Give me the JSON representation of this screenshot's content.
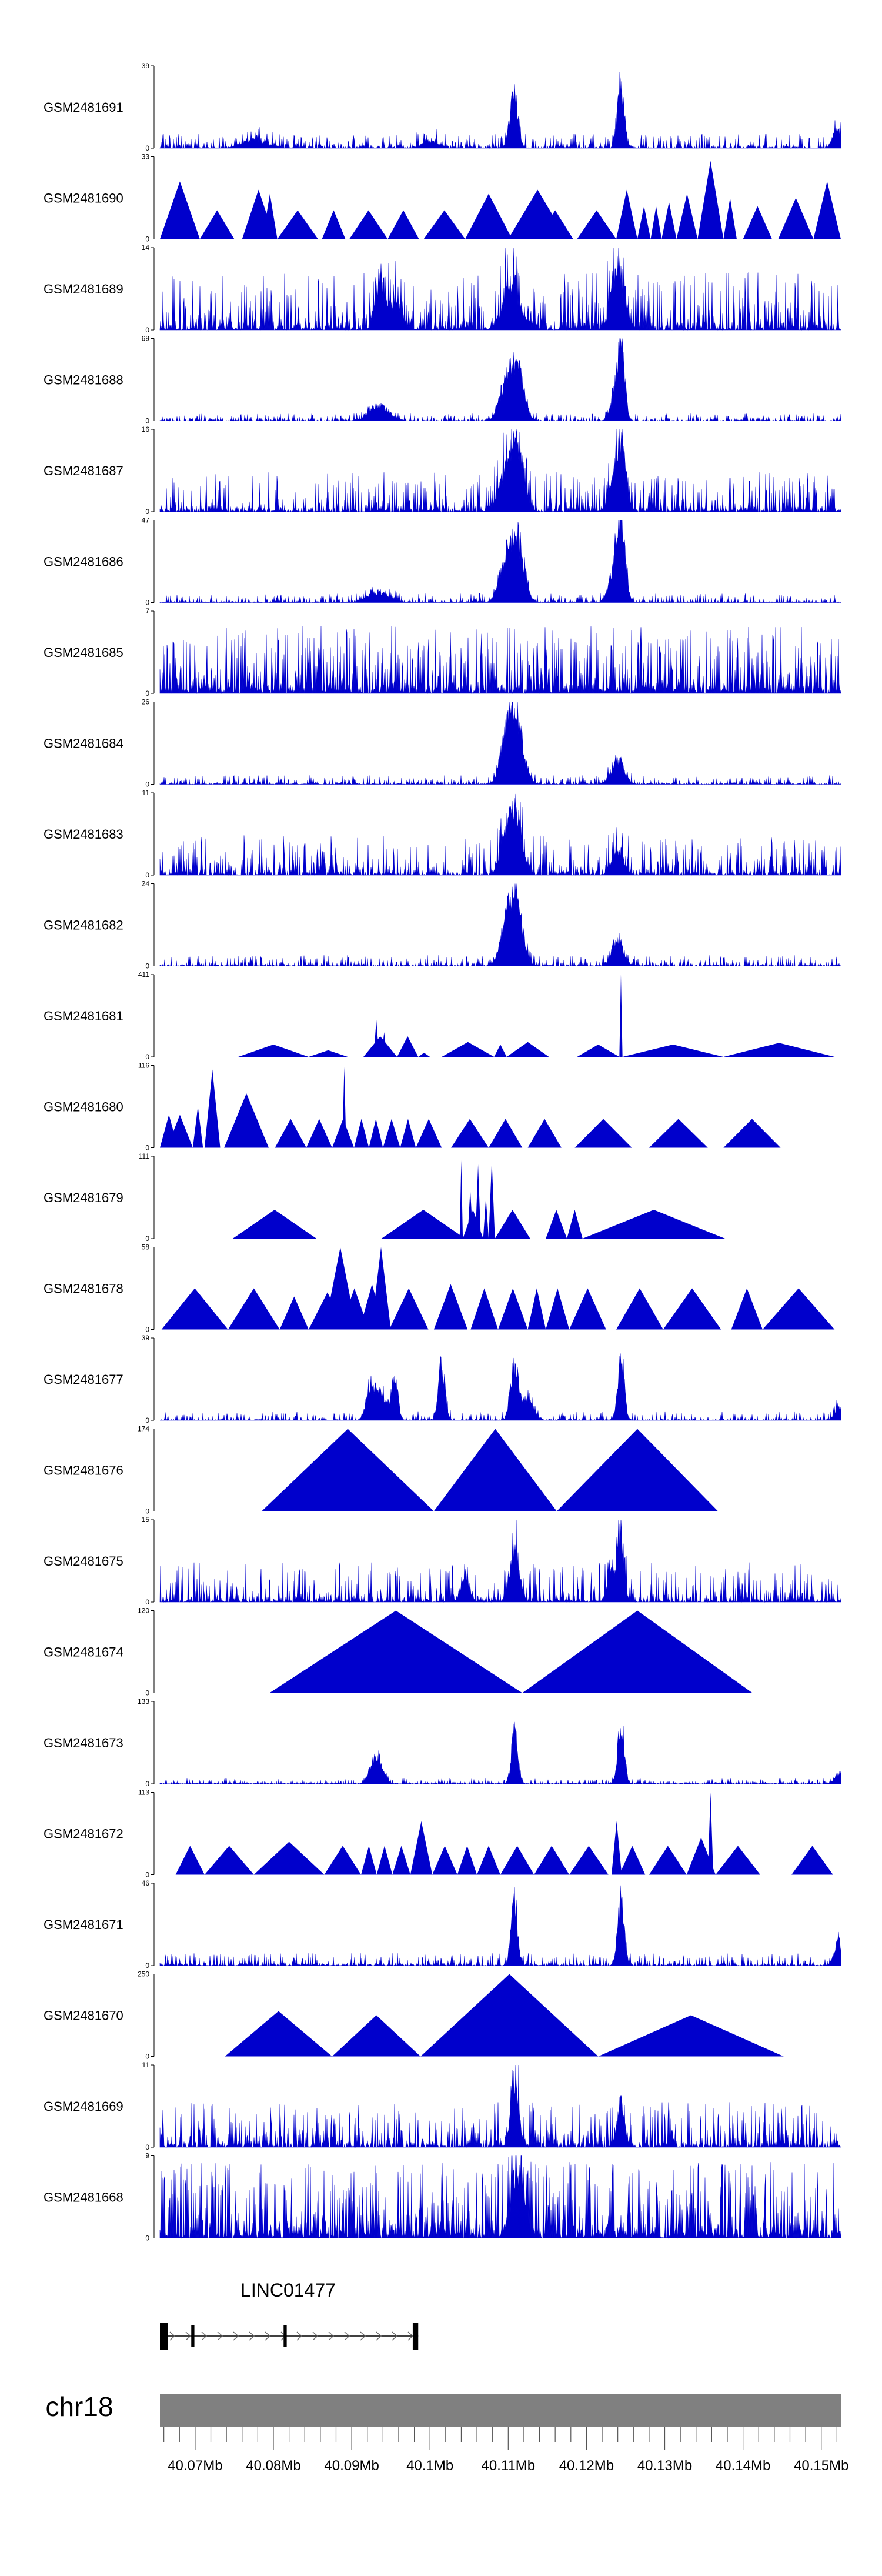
{
  "colors": {
    "signal": "#0000cc",
    "axis": "#000000",
    "chromosome_bar": "#808080",
    "gene": "#000000"
  },
  "chart_data": {
    "type": "area",
    "title": "",
    "region": {
      "chromosome": "chr18",
      "start_mb": 40.0655,
      "end_mb": 40.1525
    },
    "gene": {
      "name": "LINC01477",
      "strand": "+",
      "start_mb": 40.0655,
      "end_mb": 40.0985,
      "exons": [
        [
          40.0655,
          40.0665
        ],
        [
          40.0695,
          40.0699
        ],
        [
          40.0813,
          40.0817
        ],
        [
          40.0978,
          40.0985
        ]
      ]
    },
    "axis": {
      "tick_labels": [
        "40.07Mb",
        "40.08Mb",
        "40.09Mb",
        "40.1Mb",
        "40.11Mb",
        "40.12Mb",
        "40.13Mb",
        "40.14Mb",
        "40.15Mb"
      ],
      "tick_values_mb": [
        40.07,
        40.08,
        40.09,
        40.1,
        40.11,
        40.12,
        40.13,
        40.14,
        40.15
      ],
      "minor_tick_step_mb": 0.002
    },
    "tracks": [
      {
        "name": "GSM2481691",
        "ymin": "0",
        "ymax": "39",
        "style": "dense",
        "seed": 11,
        "noise": 0.08,
        "peaks": [
          [
            40.0775,
            0.12,
            0.0015
          ],
          [
            40.1,
            0.1,
            0.001
          ],
          [
            40.1107,
            0.85,
            0.0005
          ],
          [
            40.1244,
            1.0,
            0.0004
          ],
          [
            40.152,
            0.3,
            0.0005
          ]
        ]
      },
      {
        "name": "GSM2481690",
        "ymin": "0",
        "ymax": "33",
        "style": "tri",
        "seed": 12,
        "tris": [
          [
            40.0655,
            40.0706,
            0.7
          ],
          [
            40.0706,
            40.075,
            0.35
          ],
          [
            40.076,
            40.0802,
            0.6
          ],
          [
            40.0786,
            40.0805,
            0.55
          ],
          [
            40.0805,
            40.0857,
            0.35
          ],
          [
            40.0862,
            40.0892,
            0.35
          ],
          [
            40.0897,
            40.0946,
            0.35
          ],
          [
            40.0946,
            40.0986,
            0.35
          ],
          [
            40.0992,
            40.1045,
            0.35
          ],
          [
            40.1045,
            40.1105,
            0.55
          ],
          [
            40.11,
            40.1175,
            0.6
          ],
          [
            40.1137,
            40.1183,
            0.35
          ],
          [
            40.1188,
            40.1238,
            0.35
          ],
          [
            40.1238,
            40.1265,
            0.6
          ],
          [
            40.1265,
            40.1282,
            0.4
          ],
          [
            40.1282,
            40.1296,
            0.4
          ],
          [
            40.1296,
            40.1315,
            0.45
          ],
          [
            40.1315,
            40.1342,
            0.55
          ],
          [
            40.1342,
            40.1375,
            0.95
          ],
          [
            40.1375,
            40.1392,
            0.5
          ],
          [
            40.14,
            40.1437,
            0.4
          ],
          [
            40.1445,
            40.149,
            0.5
          ],
          [
            40.149,
            40.1525,
            0.7
          ]
        ]
      },
      {
        "name": "GSM2481689",
        "ymin": "0",
        "ymax": "14",
        "style": "dense",
        "seed": 13,
        "noise": 0.32,
        "peaks": [
          [
            40.0936,
            0.7,
            0.0006
          ],
          [
            40.0955,
            0.4,
            0.0008
          ],
          [
            40.1105,
            0.7,
            0.001
          ],
          [
            40.124,
            0.95,
            0.0008
          ]
        ]
      },
      {
        "name": "GSM2481688",
        "ymin": "0",
        "ymax": "69",
        "style": "dense",
        "seed": 14,
        "noise": 0.04,
        "peaks": [
          [
            40.0935,
            0.22,
            0.0012
          ],
          [
            40.1097,
            0.55,
            0.0008
          ],
          [
            40.1112,
            0.8,
            0.0008
          ],
          [
            40.1238,
            0.5,
            0.0006
          ],
          [
            40.1245,
            0.95,
            0.0004
          ]
        ]
      },
      {
        "name": "GSM2481687",
        "ymin": "0",
        "ymax": "16",
        "style": "dense",
        "seed": 15,
        "noise": 0.22,
        "peaks": [
          [
            40.1098,
            0.6,
            0.0009
          ],
          [
            40.1112,
            0.8,
            0.0008
          ],
          [
            40.1236,
            0.5,
            0.0007
          ],
          [
            40.1245,
            0.9,
            0.0005
          ]
        ]
      },
      {
        "name": "GSM2481686",
        "ymin": "0",
        "ymax": "47",
        "style": "dense",
        "seed": 16,
        "noise": 0.05,
        "peaks": [
          [
            40.0935,
            0.15,
            0.0014
          ],
          [
            40.1097,
            0.6,
            0.0008
          ],
          [
            40.1112,
            0.92,
            0.0008
          ],
          [
            40.1237,
            0.6,
            0.0007
          ],
          [
            40.1245,
            0.95,
            0.0005
          ]
        ]
      },
      {
        "name": "GSM2481685",
        "ymin": "0",
        "ymax": "7",
        "style": "dense",
        "seed": 17,
        "noise": 0.55,
        "peaks": []
      },
      {
        "name": "GSM2481684",
        "ymin": "0",
        "ymax": "26",
        "style": "dense",
        "seed": 18,
        "noise": 0.05,
        "peaks": [
          [
            40.1098,
            0.6,
            0.0008
          ],
          [
            40.111,
            0.95,
            0.0009
          ],
          [
            40.124,
            0.35,
            0.0008
          ]
        ]
      },
      {
        "name": "GSM2481683",
        "ymin": "0",
        "ymax": "11",
        "style": "dense",
        "seed": 19,
        "noise": 0.22,
        "peaks": [
          [
            40.1098,
            0.45,
            0.0008
          ],
          [
            40.111,
            0.85,
            0.0008
          ],
          [
            40.124,
            0.35,
            0.0007
          ]
        ]
      },
      {
        "name": "GSM2481682",
        "ymin": "0",
        "ymax": "24",
        "style": "dense",
        "seed": 20,
        "noise": 0.06,
        "peaks": [
          [
            40.1098,
            0.55,
            0.0008
          ],
          [
            40.111,
            0.95,
            0.0008
          ],
          [
            40.124,
            0.4,
            0.0007
          ]
        ]
      },
      {
        "name": "GSM2481681",
        "ymin": "0",
        "ymax": "411",
        "style": "tri",
        "seed": 21,
        "tris": [
          [
            40.0755,
            40.0845,
            0.15
          ],
          [
            40.0845,
            40.0895,
            0.08
          ],
          [
            40.0915,
            40.0958,
            0.25
          ],
          [
            40.0928,
            40.0935,
            0.45
          ],
          [
            40.0938,
            40.0945,
            0.3
          ],
          [
            40.0958,
            40.0985,
            0.25
          ],
          [
            40.0985,
            40.1,
            0.05
          ],
          [
            40.1015,
            40.1082,
            0.18
          ],
          [
            40.1082,
            40.1098,
            0.15
          ],
          [
            40.1098,
            40.1152,
            0.18
          ],
          [
            40.1188,
            40.1242,
            0.15
          ],
          [
            40.1242,
            40.1246,
            1.0
          ],
          [
            40.1246,
            40.1375,
            0.15
          ],
          [
            40.1375,
            40.1517,
            0.17
          ]
        ]
      },
      {
        "name": "GSM2481680",
        "ymin": "0",
        "ymax": "116",
        "style": "tri",
        "seed": 22,
        "tris": [
          [
            40.0655,
            40.0678,
            0.4
          ],
          [
            40.0664,
            40.0697,
            0.4
          ],
          [
            40.0697,
            40.071,
            0.5
          ],
          [
            40.0712,
            40.0732,
            0.95
          ],
          [
            40.0737,
            40.0794,
            0.66
          ],
          [
            40.0802,
            40.0842,
            0.35
          ],
          [
            40.0842,
            40.0875,
            0.35
          ],
          [
            40.0875,
            40.0903,
            0.35
          ],
          [
            40.0888,
            40.0893,
            0.98
          ],
          [
            40.0903,
            40.0922,
            0.35
          ],
          [
            40.0922,
            40.094,
            0.35
          ],
          [
            40.094,
            40.0962,
            0.35
          ],
          [
            40.0962,
            40.0982,
            0.35
          ],
          [
            40.0982,
            40.1015,
            0.35
          ],
          [
            40.1027,
            40.1075,
            0.35
          ],
          [
            40.1075,
            40.1118,
            0.35
          ],
          [
            40.1125,
            40.1168,
            0.35
          ],
          [
            40.1185,
            40.1258,
            0.35
          ],
          [
            40.128,
            40.1355,
            0.35
          ],
          [
            40.1375,
            40.1448,
            0.35
          ]
        ]
      },
      {
        "name": "GSM2481679",
        "ymin": "0",
        "ymax": "111",
        "style": "tri",
        "seed": 23,
        "tris": [
          [
            40.0748,
            40.0855,
            0.35
          ],
          [
            40.0938,
            40.1045,
            0.35
          ],
          [
            40.1038,
            40.1042,
            0.95
          ],
          [
            40.1042,
            40.1068,
            0.35
          ],
          [
            40.1048,
            40.1055,
            0.6
          ],
          [
            40.1058,
            40.1065,
            0.9
          ],
          [
            40.1068,
            40.1075,
            0.5
          ],
          [
            40.1075,
            40.1083,
            0.95
          ],
          [
            40.1083,
            40.1128,
            0.35
          ],
          [
            40.1148,
            40.1175,
            0.35
          ],
          [
            40.1175,
            40.1195,
            0.35
          ],
          [
            40.1195,
            40.1377,
            0.35
          ]
        ]
      },
      {
        "name": "GSM2481678",
        "ymin": "0",
        "ymax": "58",
        "style": "tri",
        "seed": 24,
        "tris": [
          [
            40.0657,
            40.0742,
            0.5
          ],
          [
            40.0742,
            40.0808,
            0.5
          ],
          [
            40.0808,
            40.0845,
            0.4
          ],
          [
            40.0845,
            40.0893,
            0.45
          ],
          [
            40.0865,
            40.0906,
            1.0
          ],
          [
            40.0885,
            40.0922,
            0.5
          ],
          [
            40.091,
            40.0942,
            0.55
          ],
          [
            40.0925,
            40.095,
            1.05
          ],
          [
            40.0948,
            40.0998,
            0.5
          ],
          [
            40.1005,
            40.1048,
            0.55
          ],
          [
            40.1052,
            40.1087,
            0.5
          ],
          [
            40.1087,
            40.1125,
            0.5
          ],
          [
            40.1125,
            40.1148,
            0.5
          ],
          [
            40.1148,
            40.1178,
            0.5
          ],
          [
            40.1178,
            40.1225,
            0.5
          ],
          [
            40.1238,
            40.1298,
            0.5
          ],
          [
            40.1298,
            40.1372,
            0.5
          ],
          [
            40.1385,
            40.1425,
            0.5
          ],
          [
            40.1425,
            40.1517,
            0.5
          ]
        ]
      },
      {
        "name": "GSM2481677",
        "ymin": "0",
        "ymax": "39",
        "style": "dense",
        "seed": 25,
        "noise": 0.05,
        "peaks": [
          [
            40.0925,
            0.45,
            0.0006
          ],
          [
            40.0938,
            0.35,
            0.0008
          ],
          [
            40.0955,
            0.6,
            0.0004
          ],
          [
            40.1015,
            0.85,
            0.0004
          ],
          [
            40.1108,
            0.75,
            0.0005
          ],
          [
            40.1124,
            0.3,
            0.0008
          ],
          [
            40.1244,
            1.0,
            0.0004
          ],
          [
            40.1522,
            0.2,
            0.0005
          ]
        ]
      },
      {
        "name": "GSM2481676",
        "ymin": "0",
        "ymax": "174",
        "style": "tri",
        "seed": 26,
        "tris": [
          [
            40.0785,
            40.1005,
            1.0
          ],
          [
            40.1005,
            40.1162,
            1.0
          ],
          [
            40.1162,
            40.1368,
            1.0
          ]
        ]
      },
      {
        "name": "GSM2481675",
        "ymin": "0",
        "ymax": "15",
        "style": "dense",
        "seed": 27,
        "noise": 0.22,
        "peaks": [
          [
            40.1108,
            0.8,
            0.0006
          ],
          [
            40.1232,
            0.5,
            0.0005
          ],
          [
            40.1244,
            1.0,
            0.0004
          ],
          [
            40.1045,
            0.4,
            0.0005
          ]
        ]
      },
      {
        "name": "GSM2481674",
        "ymin": "0",
        "ymax": "120",
        "style": "tri",
        "seed": 27,
        "tris": [
          [
            40.0795,
            40.1118,
            1.0
          ],
          [
            40.1118,
            40.1412,
            1.0
          ]
        ]
      },
      {
        "name": "GSM2481673",
        "ymin": "0",
        "ymax": "133",
        "style": "dense",
        "seed": 29,
        "noise": 0.03,
        "peaks": [
          [
            40.0925,
            0.2,
            0.0005
          ],
          [
            40.0935,
            0.35,
            0.0006
          ],
          [
            40.1108,
            0.78,
            0.0004
          ],
          [
            40.1244,
            1.0,
            0.0004
          ],
          [
            40.1522,
            0.15,
            0.0005
          ]
        ]
      },
      {
        "name": "GSM2481672",
        "ymin": "0",
        "ymax": "113",
        "style": "tri",
        "seed": 30,
        "tris": [
          [
            40.0675,
            40.0712,
            0.35
          ],
          [
            40.0712,
            40.0775,
            0.35
          ],
          [
            40.0775,
            40.0865,
            0.4
          ],
          [
            40.0865,
            40.0912,
            0.35
          ],
          [
            40.0912,
            40.0932,
            0.35
          ],
          [
            40.0932,
            40.0952,
            0.35
          ],
          [
            40.0952,
            40.0975,
            0.35
          ],
          [
            40.0975,
            40.1003,
            0.65
          ],
          [
            40.1003,
            40.1035,
            0.35
          ],
          [
            40.1035,
            40.106,
            0.35
          ],
          [
            40.106,
            40.109,
            0.35
          ],
          [
            40.109,
            40.1133,
            0.35
          ],
          [
            40.1133,
            40.1178,
            0.35
          ],
          [
            40.1178,
            40.1228,
            0.35
          ],
          [
            40.1232,
            40.1245,
            0.65
          ],
          [
            40.1242,
            40.1275,
            0.35
          ],
          [
            40.128,
            40.1328,
            0.35
          ],
          [
            40.1328,
            40.1365,
            0.45
          ],
          [
            40.1355,
            40.1362,
            1.0
          ],
          [
            40.1365,
            40.1422,
            0.35
          ],
          [
            40.1462,
            40.1515,
            0.35
          ]
        ]
      },
      {
        "name": "GSM2481671",
        "ymin": "0",
        "ymax": "46",
        "style": "dense",
        "seed": 31,
        "noise": 0.07,
        "peaks": [
          [
            40.1108,
            1.0,
            0.0004
          ],
          [
            40.1244,
            1.0,
            0.0004
          ],
          [
            40.1522,
            0.35,
            0.0005
          ]
        ]
      },
      {
        "name": "GSM2481670",
        "ymin": "0",
        "ymax": "250",
        "style": "tri",
        "seed": 32,
        "tris": [
          [
            40.0738,
            40.0875,
            0.55
          ],
          [
            40.0875,
            40.0988,
            0.5
          ],
          [
            40.0988,
            40.1215,
            1.0
          ],
          [
            40.1215,
            40.1452,
            0.5
          ]
        ]
      },
      {
        "name": "GSM2481669",
        "ymin": "0",
        "ymax": "11",
        "style": "dense",
        "seed": 33,
        "noise": 0.25,
        "peaks": [
          [
            40.1108,
            1.0,
            0.0005
          ],
          [
            40.1244,
            0.6,
            0.0005
          ]
        ]
      },
      {
        "name": "GSM2481668",
        "ymin": "0",
        "ymax": "9",
        "style": "dense",
        "seed": 34,
        "noise": 0.62,
        "peaks": [
          [
            40.1112,
            0.95,
            0.0008
          ]
        ]
      }
    ]
  }
}
